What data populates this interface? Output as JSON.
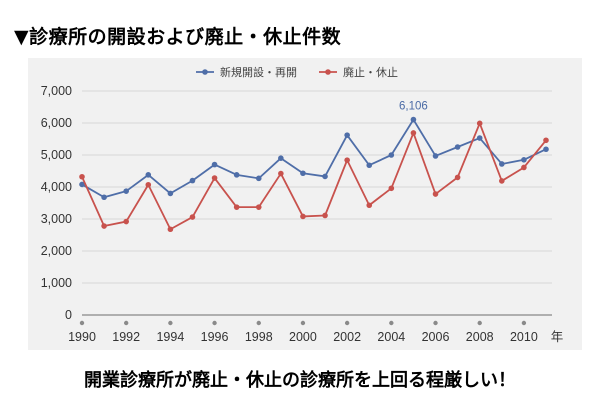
{
  "page": {
    "heading": "▼診療所の開設および廃止・休止件数",
    "caption": "開業診療所が廃止・休止の診療所を上回る程厳しい！"
  },
  "chart_data": {
    "type": "line",
    "title": "",
    "xlabel": "",
    "ylabel": "",
    "x_unit": "年",
    "x": [
      1990,
      1991,
      1992,
      1993,
      1994,
      1995,
      1996,
      1997,
      1998,
      1999,
      2000,
      2001,
      2002,
      2003,
      2004,
      2005,
      2006,
      2007,
      2008,
      2009,
      2010,
      2011
    ],
    "x_tick_labels": [
      "1990",
      "1992",
      "1994",
      "1996",
      "1998",
      "2000",
      "2002",
      "2004",
      "2006",
      "2008",
      "2010"
    ],
    "ylim": [
      0,
      7000
    ],
    "y_ticks": [
      "0",
      "1,000",
      "2,000",
      "3,000",
      "4,000",
      "5,000",
      "6,000",
      "7,000"
    ],
    "grid": true,
    "legend_position": "top-center",
    "series": [
      {
        "name": "新規開設・再開",
        "color": "#4f6ea8",
        "values": [
          4080,
          3680,
          3870,
          4380,
          3800,
          4200,
          4700,
          4380,
          4270,
          4900,
          4430,
          4330,
          5620,
          4680,
          5000,
          6106,
          4970,
          5250,
          5530,
          4720,
          4850,
          5180
        ]
      },
      {
        "name": "廃止・休止",
        "color": "#c8524d",
        "values": [
          4320,
          2780,
          2920,
          4070,
          2680,
          3060,
          4280,
          3370,
          3370,
          4420,
          3080,
          3110,
          4840,
          3430,
          3960,
          5690,
          3780,
          4300,
          5990,
          4190,
          4610,
          5460
        ]
      }
    ],
    "annotations": [
      {
        "series": 0,
        "index": 15,
        "text": "6,106"
      }
    ]
  }
}
